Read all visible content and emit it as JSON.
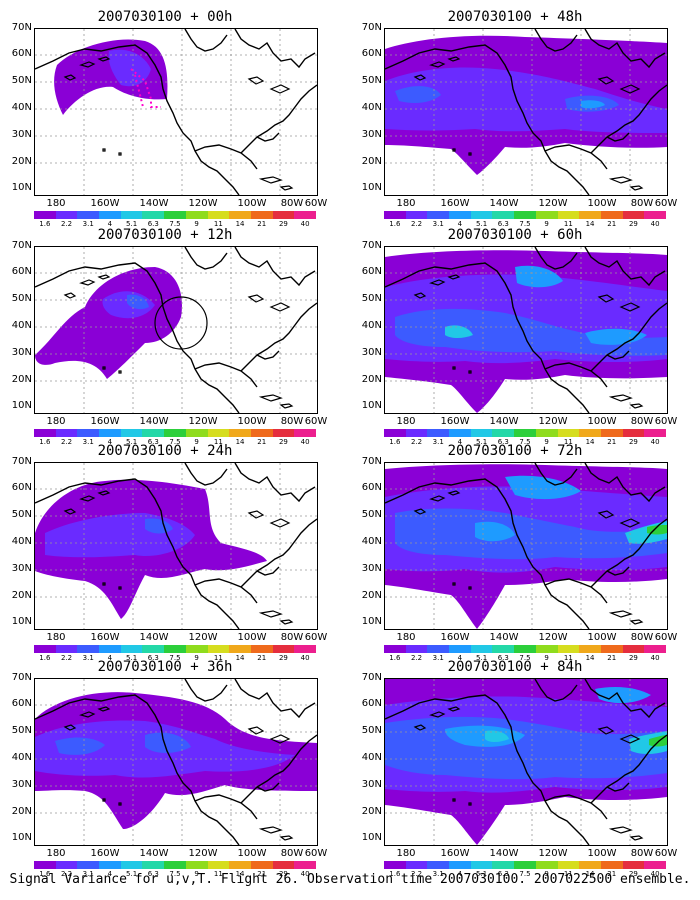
{
  "caption": "Signal Variance for u,v,T. Flight 26. Observation time 2007030100. 2007022500 ensemble.",
  "lat_labels": [
    "70N",
    "60N",
    "50N",
    "40N",
    "30N",
    "20N",
    "10N"
  ],
  "lon_labels": [
    "180",
    "160W",
    "140W",
    "120W",
    "100W",
    "80W",
    "60W"
  ],
  "colorbar": {
    "colors": [
      "#8a00d6",
      "#6a2bff",
      "#3c5bff",
      "#1e9bff",
      "#21c8e6",
      "#23d8a8",
      "#2ccf3b",
      "#8fdc1d",
      "#d6dd1f",
      "#f0a81b",
      "#ef6a1c",
      "#e52e3e",
      "#ec1f8e"
    ],
    "labels": [
      "1.6",
      "2.2",
      "3.1",
      "4",
      "5.1",
      "6.3",
      "7.5",
      "9",
      "11",
      "14",
      "21",
      "29",
      "40"
    ]
  },
  "panels": [
    {
      "id": "p00",
      "title": "2007030100 + 00h"
    },
    {
      "id": "p48",
      "title": "2007030100 + 48h"
    },
    {
      "id": "p12",
      "title": "2007030100 + 12h"
    },
    {
      "id": "p60",
      "title": "2007030100 + 60h"
    },
    {
      "id": "p24",
      "title": "2007030100 + 24h"
    },
    {
      "id": "p72",
      "title": "2007030100 + 72h"
    },
    {
      "id": "p36",
      "title": "2007030100 + 36h"
    },
    {
      "id": "p84",
      "title": "2007030100 + 84h"
    }
  ]
}
